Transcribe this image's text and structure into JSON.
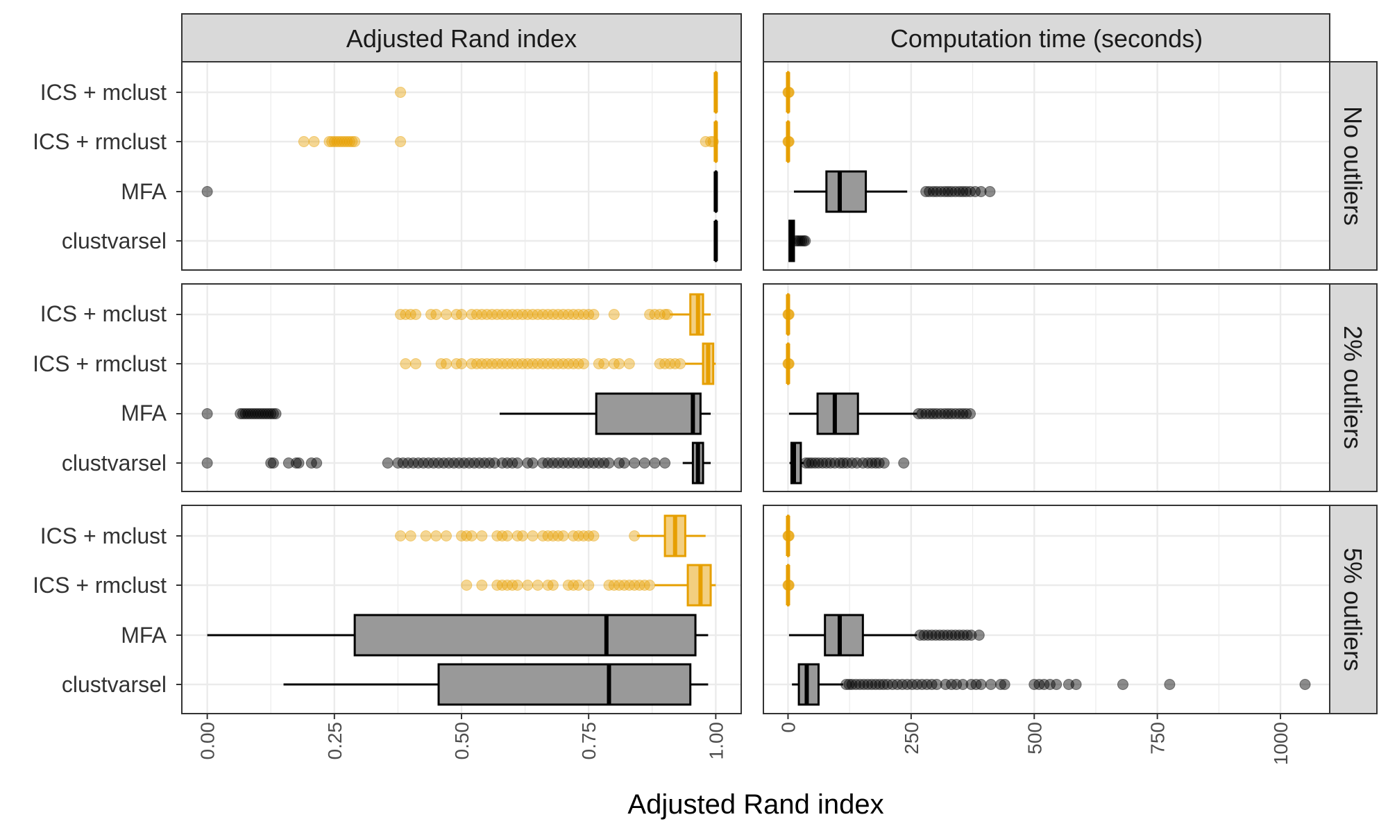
{
  "colors": {
    "orange": "#E69F00",
    "black": "#000000",
    "box_fill_gray": "#999999",
    "box_fill_orange": "#F3CF80",
    "strip_fill": "#D9D9D9",
    "grid": "#EBEBEB"
  },
  "chart_data": {
    "type": "box",
    "xlabel": "Adjusted Rand index",
    "column_titles": [
      "Adjusted Rand index",
      "Computation time (seconds)"
    ],
    "row_titles": [
      "No outliers",
      "2% outliers",
      "5% outliers"
    ],
    "methods": [
      "ICS + mclust",
      "ICS + rmclust",
      "MFA",
      "clustvarsel"
    ],
    "method_colors": [
      "orange",
      "orange",
      "black",
      "black"
    ],
    "axes": [
      {
        "name": "ari",
        "range": [
          -0.05,
          1.05
        ],
        "ticks": [
          0,
          0.25,
          0.5,
          0.75,
          1
        ],
        "tick_labels": [
          "0.00",
          "0.25",
          "0.50",
          "0.75",
          "1.00"
        ]
      },
      {
        "name": "time",
        "range": [
          -50,
          1100
        ],
        "ticks": [
          0,
          250,
          500,
          750,
          1000
        ],
        "tick_labels": [
          "0",
          "250",
          "500",
          "750",
          "1000"
        ]
      }
    ],
    "panels": [
      {
        "row": 0,
        "col": 0,
        "boxes": [
          {
            "q1": 1.0,
            "med": 1.0,
            "q3": 1.0,
            "lo": 1.0,
            "hi": 1.0,
            "out": [
              0.38
            ]
          },
          {
            "q1": 1.0,
            "med": 1.0,
            "q3": 1.0,
            "lo": 1.0,
            "hi": 1.0,
            "out": [
              0.19,
              0.21,
              0.24,
              0.245,
              0.25,
              0.255,
              0.26,
              0.265,
              0.27,
              0.275,
              0.28,
              0.285,
              0.29,
              0.38,
              0.98,
              0.99,
              0.995
            ]
          },
          {
            "q1": 1.0,
            "med": 1.0,
            "q3": 1.0,
            "lo": 1.0,
            "hi": 1.0,
            "out": [
              0.0
            ]
          },
          {
            "q1": 1.0,
            "med": 1.0,
            "q3": 1.0,
            "lo": 1.0,
            "hi": 1.0,
            "out": []
          }
        ]
      },
      {
        "row": 0,
        "col": 1,
        "boxes": [
          {
            "q1": 0,
            "med": 0,
            "q3": 0,
            "lo": 0,
            "hi": 0,
            "out": [
              0,
              1,
              2
            ]
          },
          {
            "q1": 0,
            "med": 0,
            "q3": 0,
            "lo": 0,
            "hi": 0,
            "out": [
              0,
              1,
              2
            ]
          },
          {
            "q1": 78,
            "med": 105,
            "q3": 158,
            "lo": 12,
            "hi": 242,
            "out": [
              280,
              287,
              295,
              302,
              310,
              318,
              325,
              332,
              340,
              348,
              355,
              362,
              370,
              380,
              392,
              410
            ]
          },
          {
            "q1": 3,
            "med": 6,
            "q3": 12,
            "lo": 2,
            "hi": 14,
            "out": [
              16,
              20,
              24,
              28,
              32,
              35
            ]
          }
        ]
      },
      {
        "row": 1,
        "col": 0,
        "boxes": [
          {
            "q1": 0.95,
            "med": 0.965,
            "q3": 0.975,
            "lo": 0.91,
            "hi": 0.99,
            "out": [
              0.38,
              0.39,
              0.4,
              0.41,
              0.44,
              0.45,
              0.47,
              0.49,
              0.5,
              0.52,
              0.53,
              0.54,
              0.55,
              0.56,
              0.57,
              0.58,
              0.59,
              0.6,
              0.61,
              0.62,
              0.63,
              0.64,
              0.65,
              0.66,
              0.67,
              0.68,
              0.69,
              0.7,
              0.71,
              0.72,
              0.73,
              0.74,
              0.75,
              0.76,
              0.8,
              0.87,
              0.88,
              0.89,
              0.9,
              0.905
            ]
          },
          {
            "q1": 0.975,
            "med": 0.985,
            "q3": 0.995,
            "lo": 0.94,
            "hi": 1.0,
            "out": [
              0.39,
              0.41,
              0.46,
              0.47,
              0.49,
              0.5,
              0.52,
              0.53,
              0.54,
              0.55,
              0.56,
              0.57,
              0.58,
              0.59,
              0.6,
              0.61,
              0.62,
              0.63,
              0.64,
              0.65,
              0.66,
              0.67,
              0.68,
              0.69,
              0.7,
              0.71,
              0.72,
              0.73,
              0.74,
              0.77,
              0.78,
              0.8,
              0.81,
              0.83,
              0.89,
              0.9,
              0.91,
              0.92,
              0.93
            ]
          },
          {
            "q1": 0.765,
            "med": 0.955,
            "q3": 0.97,
            "lo": 0.575,
            "hi": 0.99,
            "out": [
              0.0,
              0.065,
              0.07,
              0.075,
              0.08,
              0.085,
              0.09,
              0.095,
              0.1,
              0.105,
              0.11,
              0.115,
              0.12,
              0.125,
              0.13,
              0.135
            ]
          },
          {
            "q1": 0.955,
            "med": 0.965,
            "q3": 0.975,
            "lo": 0.935,
            "hi": 0.99,
            "out": [
              0.0,
              0.125,
              0.13,
              0.16,
              0.175,
              0.18,
              0.205,
              0.215,
              0.355,
              0.375,
              0.385,
              0.395,
              0.405,
              0.415,
              0.425,
              0.435,
              0.445,
              0.455,
              0.465,
              0.475,
              0.485,
              0.495,
              0.505,
              0.515,
              0.525,
              0.535,
              0.545,
              0.555,
              0.565,
              0.58,
              0.59,
              0.6,
              0.61,
              0.63,
              0.64,
              0.66,
              0.67,
              0.68,
              0.69,
              0.7,
              0.71,
              0.72,
              0.73,
              0.74,
              0.75,
              0.76,
              0.77,
              0.78,
              0.79,
              0.81,
              0.82,
              0.84,
              0.86,
              0.88,
              0.9
            ]
          }
        ]
      },
      {
        "row": 1,
        "col": 1,
        "boxes": [
          {
            "q1": 0,
            "med": 0,
            "q3": 0,
            "lo": 0,
            "hi": 0,
            "out": [
              0,
              1,
              2
            ]
          },
          {
            "q1": 0,
            "med": 0,
            "q3": 0,
            "lo": 0,
            "hi": 0,
            "out": [
              0,
              1,
              2
            ]
          },
          {
            "q1": 60,
            "med": 95,
            "q3": 142,
            "lo": 2,
            "hi": 262,
            "out": [
              265,
              272,
              280,
              288,
              295,
              302,
              310,
              318,
              325,
              332,
              340,
              348,
              355,
              362,
              370
            ]
          },
          {
            "q1": 7,
            "med": 12,
            "q3": 26,
            "lo": 3,
            "hi": 32,
            "out": [
              36,
              42,
              48,
              55,
              62,
              70,
              78,
              86,
              95,
              105,
              112,
              120,
              130,
              140,
              152,
              162,
              170,
              178,
              185,
              195,
              235
            ]
          }
        ]
      },
      {
        "row": 2,
        "col": 0,
        "boxes": [
          {
            "q1": 0.9,
            "med": 0.92,
            "q3": 0.94,
            "lo": 0.845,
            "hi": 0.98,
            "out": [
              0.38,
              0.4,
              0.43,
              0.45,
              0.47,
              0.5,
              0.51,
              0.52,
              0.54,
              0.57,
              0.58,
              0.59,
              0.61,
              0.62,
              0.64,
              0.66,
              0.67,
              0.68,
              0.69,
              0.7,
              0.72,
              0.73,
              0.74,
              0.75,
              0.76,
              0.84
            ]
          },
          {
            "q1": 0.945,
            "med": 0.97,
            "q3": 0.99,
            "lo": 0.88,
            "hi": 1.0,
            "out": [
              0.51,
              0.54,
              0.57,
              0.58,
              0.59,
              0.6,
              0.61,
              0.63,
              0.65,
              0.67,
              0.68,
              0.71,
              0.72,
              0.73,
              0.75,
              0.79,
              0.8,
              0.81,
              0.82,
              0.83,
              0.84,
              0.85,
              0.86,
              0.87
            ]
          },
          {
            "q1": 0.29,
            "med": 0.785,
            "q3": 0.96,
            "lo": 0.0,
            "hi": 0.985,
            "out": []
          },
          {
            "q1": 0.455,
            "med": 0.79,
            "q3": 0.95,
            "lo": 0.15,
            "hi": 0.985,
            "out": []
          }
        ]
      },
      {
        "row": 2,
        "col": 1,
        "boxes": [
          {
            "q1": 0,
            "med": 0,
            "q3": 0,
            "lo": 0,
            "hi": 0,
            "out": [
              0,
              1,
              2
            ]
          },
          {
            "q1": 0,
            "med": 0,
            "q3": 0,
            "lo": 0,
            "hi": 0,
            "out": [
              0,
              1,
              2
            ]
          },
          {
            "q1": 75,
            "med": 105,
            "q3": 152,
            "lo": 2,
            "hi": 262,
            "out": [
              268,
              276,
              284,
              292,
              300,
              308,
              316,
              324,
              332,
              340,
              348,
              356,
              364,
              372,
              388
            ]
          },
          {
            "q1": 22,
            "med": 38,
            "q3": 62,
            "lo": 8,
            "hi": 112,
            "out": [
              118,
              124,
              130,
              138,
              146,
              154,
              162,
              170,
              178,
              186,
              194,
              202,
              212,
              222,
              232,
              242,
              252,
              262,
              272,
              282,
              292,
              302,
              320,
              332,
              342,
              355,
              372,
              382,
              392,
              412,
              432,
              440,
              500,
              510,
              520,
              532,
              545,
              570,
              585,
              680,
              775,
              1050
            ]
          }
        ]
      }
    ]
  }
}
